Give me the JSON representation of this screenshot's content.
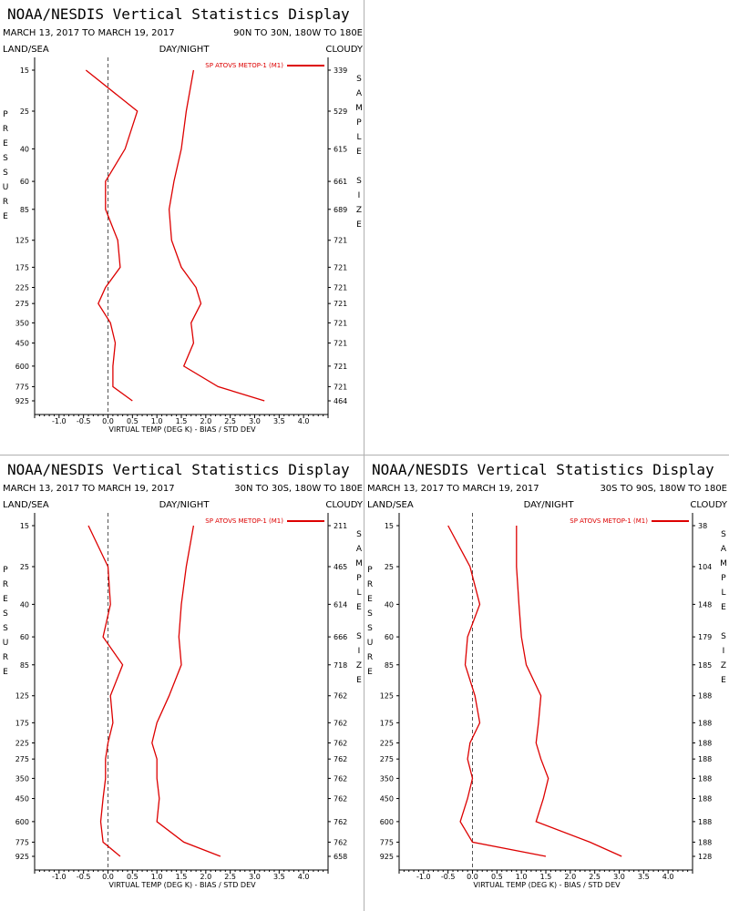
{
  "colors": {
    "series": "#dd0000",
    "zero_line": "#555555",
    "axis": "#000000",
    "panel_divider": "#b0b0b0"
  },
  "chart_data": [
    {
      "type": "line",
      "title": "NOAA/NESDIS Vertical Statistics Display",
      "subtitle_dates": "MARCH 13, 2017 TO MARCH 19, 2017",
      "subtitle_region": "90N TO 30N, 180W TO 180E",
      "header_left": "LAND/SEA",
      "header_mid": "DAY/NIGHT",
      "header_right": "CLOUDY",
      "xlabel": "VIRTUAL TEMP (DEG K) - BIAS / STD DEV",
      "ylabel": "PRESSURE",
      "y2label": "SAMPLE SIZE",
      "legend": "SP ATOVS METOP-1 (M1)",
      "xlim": [
        -1.5,
        4.5
      ],
      "x_ticks": [
        "-1.0",
        "-0.5",
        "0.0",
        "0.5",
        "1.0",
        "1.5",
        "2.0",
        "2.5",
        "3.0",
        "3.5",
        "4.0"
      ],
      "y_scale": "log",
      "pressure_levels": [
        "15",
        "25",
        "40",
        "60",
        "85",
        "125",
        "175",
        "225",
        "275",
        "350",
        "450",
        "600",
        "775",
        "925"
      ],
      "sample_sizes": [
        "339",
        "529",
        "615",
        "661",
        "689",
        "721",
        "721",
        "721",
        "721",
        "721",
        "721",
        "721",
        "721",
        "464"
      ],
      "series": [
        {
          "name": "bias",
          "values": [
            -0.45,
            0.6,
            0.35,
            -0.05,
            -0.05,
            0.2,
            0.25,
            -0.05,
            -0.2,
            0.05,
            0.15,
            0.1,
            0.1,
            0.5
          ]
        },
        {
          "name": "std_dev",
          "values": [
            1.75,
            1.6,
            1.5,
            1.35,
            1.25,
            1.3,
            1.5,
            1.8,
            1.9,
            1.7,
            1.75,
            1.55,
            2.25,
            3.2
          ]
        }
      ]
    },
    {
      "type": "line",
      "title": "NOAA/NESDIS Vertical Statistics Display",
      "subtitle_dates": "MARCH 13, 2017 TO MARCH 19, 2017",
      "subtitle_region": "30N TO 30S, 180W TO 180E",
      "header_left": "LAND/SEA",
      "header_mid": "DAY/NIGHT",
      "header_right": "CLOUDY",
      "xlabel": "VIRTUAL TEMP (DEG K) - BIAS / STD DEV",
      "ylabel": "PRESSURE",
      "y2label": "SAMPLE SIZE",
      "legend": "SP ATOVS METOP-1 (M1)",
      "xlim": [
        -1.5,
        4.5
      ],
      "x_ticks": [
        "-1.0",
        "-0.5",
        "0.0",
        "0.5",
        "1.0",
        "1.5",
        "2.0",
        "2.5",
        "3.0",
        "3.5",
        "4.0"
      ],
      "y_scale": "log",
      "pressure_levels": [
        "15",
        "25",
        "40",
        "60",
        "85",
        "125",
        "175",
        "225",
        "275",
        "350",
        "450",
        "600",
        "775",
        "925"
      ],
      "sample_sizes": [
        "211",
        "465",
        "614",
        "666",
        "718",
        "762",
        "762",
        "762",
        "762",
        "762",
        "762",
        "762",
        "762",
        "658"
      ],
      "series": [
        {
          "name": "bias",
          "values": [
            -0.4,
            0.0,
            0.05,
            -0.1,
            0.3,
            0.05,
            0.1,
            0.0,
            -0.05,
            -0.05,
            -0.1,
            -0.15,
            -0.1,
            0.25
          ]
        },
        {
          "name": "std_dev",
          "values": [
            1.75,
            1.6,
            1.5,
            1.45,
            1.5,
            1.25,
            1.0,
            0.9,
            1.0,
            1.0,
            1.05,
            1.0,
            1.55,
            2.3
          ]
        }
      ]
    },
    {
      "type": "line",
      "title": "NOAA/NESDIS Vertical Statistics Display",
      "subtitle_dates": "MARCH 13, 2017 TO MARCH 19, 2017",
      "subtitle_region": "30S TO 90S, 180W TO 180E",
      "header_left": "LAND/SEA",
      "header_mid": "DAY/NIGHT",
      "header_right": "CLOUDY",
      "xlabel": "VIRTUAL TEMP (DEG K) - BIAS / STD DEV",
      "ylabel": "PRESSURE",
      "y2label": "SAMPLE SIZE",
      "legend": "SP ATOVS METOP-1 (M1)",
      "xlim": [
        -1.5,
        4.5
      ],
      "x_ticks": [
        "-1.0",
        "-0.5",
        "0.0",
        "0.5",
        "1.0",
        "1.5",
        "2.0",
        "2.5",
        "3.0",
        "3.5",
        "4.0"
      ],
      "y_scale": "log",
      "pressure_levels": [
        "15",
        "25",
        "40",
        "60",
        "85",
        "125",
        "175",
        "225",
        "275",
        "350",
        "450",
        "600",
        "775",
        "925"
      ],
      "sample_sizes": [
        "38",
        "104",
        "148",
        "179",
        "185",
        "188",
        "188",
        "188",
        "188",
        "188",
        "188",
        "188",
        "188",
        "128"
      ],
      "series": [
        {
          "name": "bias",
          "values": [
            -0.5,
            -0.05,
            0.15,
            -0.1,
            -0.15,
            0.05,
            0.15,
            -0.05,
            -0.1,
            0.0,
            -0.1,
            -0.25,
            0.0,
            1.5
          ]
        },
        {
          "name": "std_dev",
          "values": [
            0.9,
            0.9,
            0.95,
            1.0,
            1.1,
            1.4,
            1.35,
            1.3,
            1.4,
            1.55,
            1.45,
            1.3,
            2.4,
            3.05
          ]
        }
      ]
    }
  ]
}
